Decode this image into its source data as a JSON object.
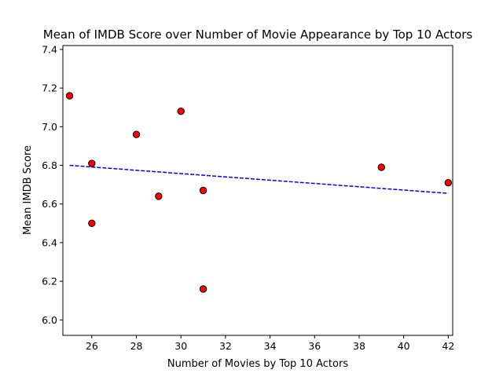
{
  "chart_data": {
    "type": "scatter",
    "title": "Mean of IMDB Score over Number of Movie Appearance by Top 10 Actors",
    "xlabel": "Number of Movies by Top 10 Actors",
    "ylabel": "Mean IMDB Score",
    "xlim": [
      24.7,
      42.2
    ],
    "ylim": [
      5.92,
      7.42
    ],
    "xticks": [
      26,
      28,
      30,
      32,
      34,
      36,
      38,
      40,
      42
    ],
    "yticks": [
      6.0,
      6.2,
      6.4,
      6.6,
      6.8,
      7.0,
      7.2,
      7.4
    ],
    "grid": false,
    "points": [
      {
        "x": 25,
        "y": 7.16
      },
      {
        "x": 26,
        "y": 6.81
      },
      {
        "x": 26,
        "y": 6.5
      },
      {
        "x": 28,
        "y": 6.96
      },
      {
        "x": 29,
        "y": 6.64
      },
      {
        "x": 30,
        "y": 7.08
      },
      {
        "x": 31,
        "y": 6.67
      },
      {
        "x": 31,
        "y": 6.16
      },
      {
        "x": 39,
        "y": 6.79
      },
      {
        "x": 42,
        "y": 6.71
      }
    ],
    "trendline": {
      "x": [
        25,
        42
      ],
      "y": [
        6.8,
        6.655
      ]
    },
    "colors": {
      "marker_fill": "#ff0000",
      "marker_edge": "#000000",
      "trendline": "#0000ff"
    }
  }
}
